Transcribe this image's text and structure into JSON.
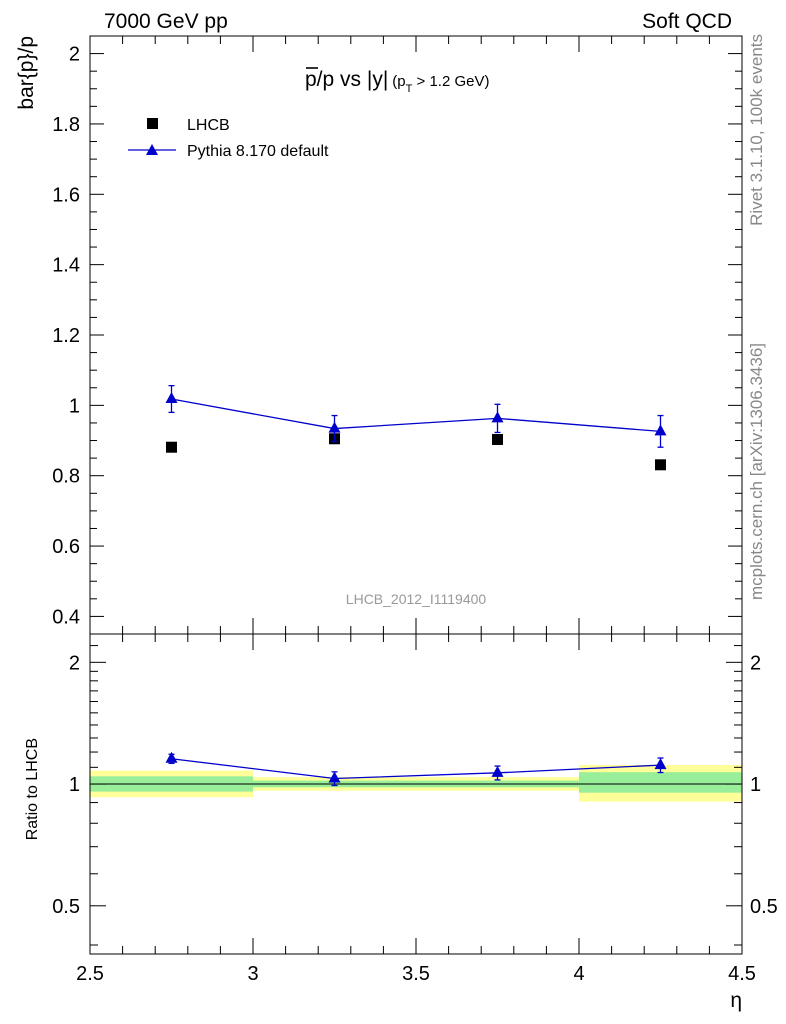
{
  "header": {
    "left": "7000 GeV pp",
    "right": "Soft QCD"
  },
  "side_labels": {
    "rivet": "Rivet 3.1.10,  100k events",
    "mcplots": "mcplots.cern.ch [arXiv:1306.3436]"
  },
  "watermark": "LHCB_2012_I1119400",
  "chart_data": [
    {
      "type": "scatter",
      "panel": "main",
      "title": {
        "main": "p/p vs |y|",
        "overbar_char": "p",
        "cut_open": "(p",
        "cut_sub": "T",
        "cut_rest": " > 1.2 GeV)"
      },
      "ylabel": "bar{p}/p",
      "xlabel": "",
      "xlim": [
        2.5,
        4.5
      ],
      "ylim": [
        0.35,
        2.05
      ],
      "yticks": [
        {
          "v": 0.4,
          "label": "0.4"
        },
        {
          "v": 0.6,
          "label": "0.6"
        },
        {
          "v": 0.8,
          "label": "0.8"
        },
        {
          "v": 1.0,
          "label": "1"
        },
        {
          "v": 1.2,
          "label": "1.2"
        },
        {
          "v": 1.4,
          "label": "1.4"
        },
        {
          "v": 1.6,
          "label": "1.6"
        },
        {
          "v": 1.8,
          "label": "1.8"
        },
        {
          "v": 2.0,
          "label": "2"
        }
      ],
      "legend_position": "top-left",
      "series": [
        {
          "name": "LHCB",
          "marker": "square",
          "color": "#000000",
          "x": [
            2.75,
            3.25,
            3.75,
            4.25
          ],
          "y": [
            0.881,
            0.905,
            0.903,
            0.831
          ],
          "yerr": [
            0.0,
            0.0,
            0.0,
            0.0
          ]
        },
        {
          "name": "Pythia 8.170 default",
          "marker": "triangle",
          "color": "#0000cc",
          "x": [
            2.75,
            3.25,
            3.75,
            4.25
          ],
          "y": [
            1.018,
            0.934,
            0.963,
            0.926
          ],
          "yerr": [
            0.038,
            0.037,
            0.04,
            0.045
          ]
        }
      ]
    },
    {
      "type": "scatter",
      "panel": "ratio",
      "ylabel": "Ratio to LHCB",
      "xlabel": "η",
      "xlim": [
        2.5,
        4.5
      ],
      "ylim": [
        0.38,
        2.35
      ],
      "ylog": true,
      "yticks": [
        {
          "v": 0.5,
          "label": "0.5"
        },
        {
          "v": 1.0,
          "label": "1"
        },
        {
          "v": 2.0,
          "label": "2"
        }
      ],
      "xticks": [
        {
          "v": 2.5,
          "label": "2.5"
        },
        {
          "v": 3.0,
          "label": "3"
        },
        {
          "v": 3.5,
          "label": "3.5"
        },
        {
          "v": 4.0,
          "label": "4"
        },
        {
          "v": 4.5,
          "label": "4.5"
        }
      ],
      "bands": [
        {
          "x0": 2.5,
          "x1": 3.0,
          "inner": [
            0.958,
            1.045
          ],
          "outer": [
            0.928,
            1.08
          ]
        },
        {
          "x0": 3.0,
          "x1": 3.5,
          "inner": [
            0.982,
            1.02
          ],
          "outer": [
            0.963,
            1.04
          ]
        },
        {
          "x0": 3.5,
          "x1": 4.0,
          "inner": [
            0.982,
            1.02
          ],
          "outer": [
            0.963,
            1.04
          ]
        },
        {
          "x0": 4.0,
          "x1": 4.5,
          "inner": [
            0.952,
            1.07
          ],
          "outer": [
            0.905,
            1.115
          ]
        }
      ],
      "band_colors": {
        "inner": "#99ee99",
        "outer": "#ffff99"
      },
      "series": [
        {
          "name": "Pythia 8.170 default",
          "marker": "triangle",
          "color": "#0000cc",
          "x": [
            2.75,
            3.25,
            3.75,
            4.25
          ],
          "y": [
            1.155,
            1.032,
            1.066,
            1.114
          ],
          "yerr": [
            0.03,
            0.04,
            0.042,
            0.046
          ]
        }
      ]
    }
  ]
}
